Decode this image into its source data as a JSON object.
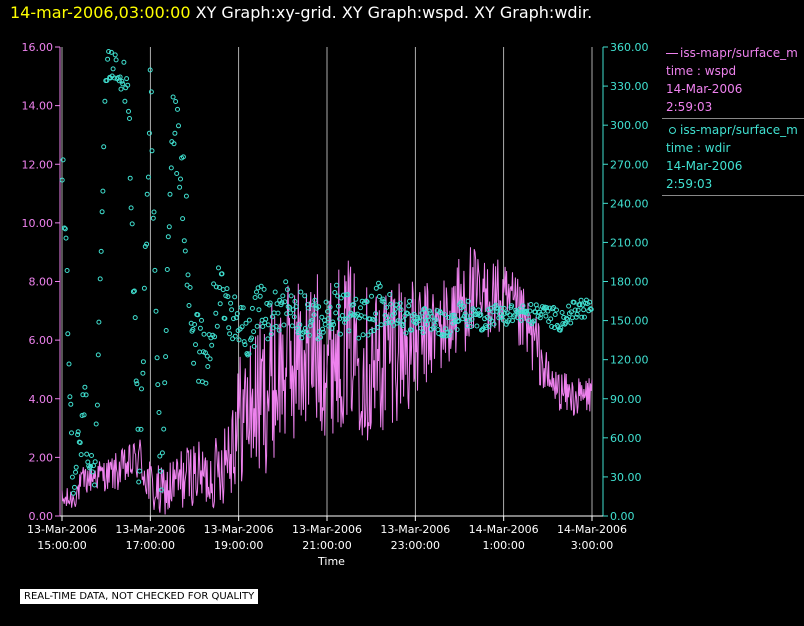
{
  "header": {
    "date_time": "14-mar-2006,03:00:00",
    "graphs": "XY Graph:xy-grid.  XY Graph:wspd.  XY Graph:wdir."
  },
  "legend": {
    "entry1": {
      "name": "iss-mapr/surface_m",
      "line2": "time : wspd",
      "line3": "14-Mar-2006",
      "line4": "2:59:03"
    },
    "entry2": {
      "name": "iss-mapr/surface_m",
      "line2": "time : wdir",
      "line3": "14-Mar-2006",
      "line4": "2:59:03"
    }
  },
  "footer_note": "REAL-TIME DATA, NOT CHECKED FOR QUALITY",
  "colors": {
    "wspd": "#ee82ee",
    "wdir": "#40e0d0",
    "grid": "#d8d8d8",
    "axis_text": "#ffffff",
    "background": "#000000"
  },
  "chart_data": {
    "type": "line",
    "xlabel": "Time",
    "x_ticks": [
      {
        "hour": 15,
        "line1": "13-Mar-2006",
        "line2": "15:00:00"
      },
      {
        "hour": 17,
        "line1": "13-Mar-2006",
        "line2": "17:00:00"
      },
      {
        "hour": 19,
        "line1": "13-Mar-2006",
        "line2": "19:00:00"
      },
      {
        "hour": 21,
        "line1": "13-Mar-2006",
        "line2": "21:00:00"
      },
      {
        "hour": 23,
        "line1": "13-Mar-2006",
        "line2": "23:00:00"
      },
      {
        "hour": 25,
        "line1": "14-Mar-2006",
        "line2": "1:00:00"
      },
      {
        "hour": 27,
        "line1": "14-Mar-2006",
        "line2": "3:00:00"
      }
    ],
    "xlim_hours": [
      15,
      27
    ],
    "grid": "vertical lines at every x tick",
    "y_left": {
      "lim": [
        0,
        16
      ],
      "ticks": [
        "0.00",
        "2.00",
        "4.00",
        "6.00",
        "8.00",
        "10.00",
        "12.00",
        "14.00",
        "16.00"
      ],
      "color": "#ee82ee"
    },
    "y_right": {
      "lim": [
        0,
        360
      ],
      "ticks": [
        "0.00",
        "30.00",
        "60.00",
        "90.00",
        "120.00",
        "150.00",
        "180.00",
        "210.00",
        "240.00",
        "270.00",
        "300.00",
        "330.00",
        "360.00"
      ],
      "color": "#40e0d0"
    },
    "series": [
      {
        "name": "iss-mapr/surface_m",
        "variable": "wspd",
        "axis": "left",
        "style": "line",
        "x_hours": [
          15.0,
          15.25,
          15.5,
          15.75,
          16.0,
          16.25,
          16.5,
          16.75,
          17.0,
          17.25,
          17.5,
          17.75,
          18.0,
          18.25,
          18.5,
          18.75,
          19.0,
          19.25,
          19.5,
          19.75,
          20.0,
          20.25,
          20.5,
          20.75,
          21.0,
          21.25,
          21.5,
          21.75,
          22.0,
          22.25,
          22.5,
          22.75,
          23.0,
          23.25,
          23.5,
          23.75,
          24.0,
          24.25,
          24.5,
          24.75,
          25.0,
          25.25,
          25.5,
          25.75,
          26.0,
          26.25,
          26.5,
          26.75,
          27.0
        ],
        "values": [
          0.5,
          0.6,
          1.2,
          1.4,
          1.4,
          1.5,
          1.7,
          2.0,
          1.0,
          0.7,
          1.0,
          1.3,
          1.5,
          1.3,
          1.5,
          2.3,
          3.3,
          3.7,
          4.0,
          4.5,
          5.0,
          5.3,
          5.5,
          5.6,
          5.5,
          5.7,
          6.0,
          5.6,
          5.0,
          5.3,
          6.0,
          5.8,
          5.8,
          6.2,
          6.4,
          6.6,
          7.2,
          7.6,
          7.2,
          7.6,
          7.2,
          7.0,
          6.4,
          5.8,
          4.6,
          4.3,
          4.1,
          4.0,
          4.2
        ],
        "variability": [
          0.3,
          0.3,
          0.4,
          0.4,
          0.4,
          0.5,
          0.5,
          0.6,
          0.7,
          0.7,
          0.8,
          0.8,
          0.8,
          0.8,
          0.9,
          1.3,
          1.6,
          1.8,
          2.0,
          2.0,
          2.0,
          2.0,
          2.0,
          2.0,
          2.0,
          2.0,
          2.0,
          2.0,
          2.0,
          2.0,
          2.0,
          1.8,
          1.5,
          1.3,
          1.2,
          1.2,
          1.3,
          1.3,
          1.1,
          1.0,
          1.0,
          0.9,
          0.9,
          0.8,
          0.6,
          0.5,
          0.5,
          0.5,
          0.5
        ]
      },
      {
        "name": "iss-mapr/surface_m",
        "variable": "wdir",
        "axis": "right",
        "style": "points",
        "x_hours": [
          15.0,
          15.25,
          15.5,
          15.75,
          16.0,
          16.25,
          16.5,
          16.75,
          17.0,
          17.25,
          17.5,
          17.75,
          18.0,
          18.25,
          18.5,
          18.75,
          19.0,
          19.25,
          19.5,
          19.75,
          20.0,
          20.25,
          20.5,
          20.75,
          21.0,
          21.25,
          21.5,
          21.75,
          22.0,
          22.25,
          22.5,
          22.75,
          23.0,
          23.25,
          23.5,
          23.75,
          24.0,
          24.25,
          24.5,
          24.75,
          25.0,
          25.25,
          25.5,
          25.75,
          26.0,
          26.25,
          26.5,
          26.75,
          27.0
        ],
        "values": [
          290,
          20,
          80,
          25,
          340,
          350,
          330,
          20,
          330,
          10,
          320,
          250,
          130,
          110,
          170,
          160,
          150,
          140,
          160,
          150,
          165,
          160,
          155,
          150,
          150,
          160,
          155,
          150,
          155,
          165,
          150,
          155,
          150,
          150,
          150,
          145,
          155,
          155,
          150,
          155,
          155,
          155,
          155,
          155,
          155,
          150,
          155,
          160,
          160
        ],
        "spread": [
          30,
          15,
          30,
          15,
          15,
          15,
          20,
          15,
          30,
          10,
          25,
          40,
          35,
          35,
          25,
          25,
          15,
          20,
          20,
          20,
          20,
          20,
          20,
          15,
          15,
          20,
          20,
          15,
          15,
          20,
          15,
          15,
          10,
          10,
          10,
          10,
          10,
          10,
          8,
          8,
          8,
          8,
          8,
          8,
          8,
          8,
          8,
          8,
          8
        ]
      }
    ]
  }
}
